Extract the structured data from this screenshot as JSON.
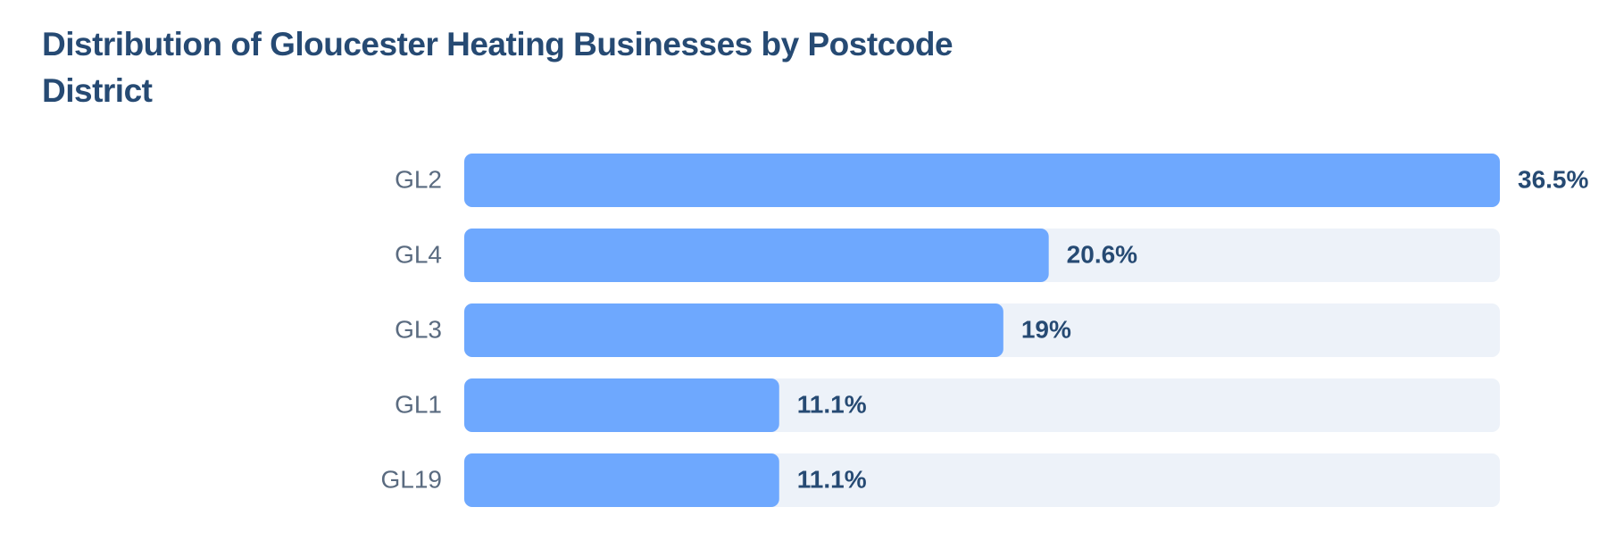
{
  "chart_data": {
    "type": "bar",
    "orientation": "horizontal",
    "title": "Distribution of Gloucester Heating Businesses by Postcode District",
    "categories": [
      "GL2",
      "GL4",
      "GL3",
      "GL1",
      "GL19"
    ],
    "values": [
      36.5,
      20.6,
      19,
      11.1,
      11.1
    ],
    "value_labels": [
      "36.5%",
      "20.6%",
      "19%",
      "11.1%",
      "11.1%"
    ],
    "color": "#6ea8fe"
  }
}
